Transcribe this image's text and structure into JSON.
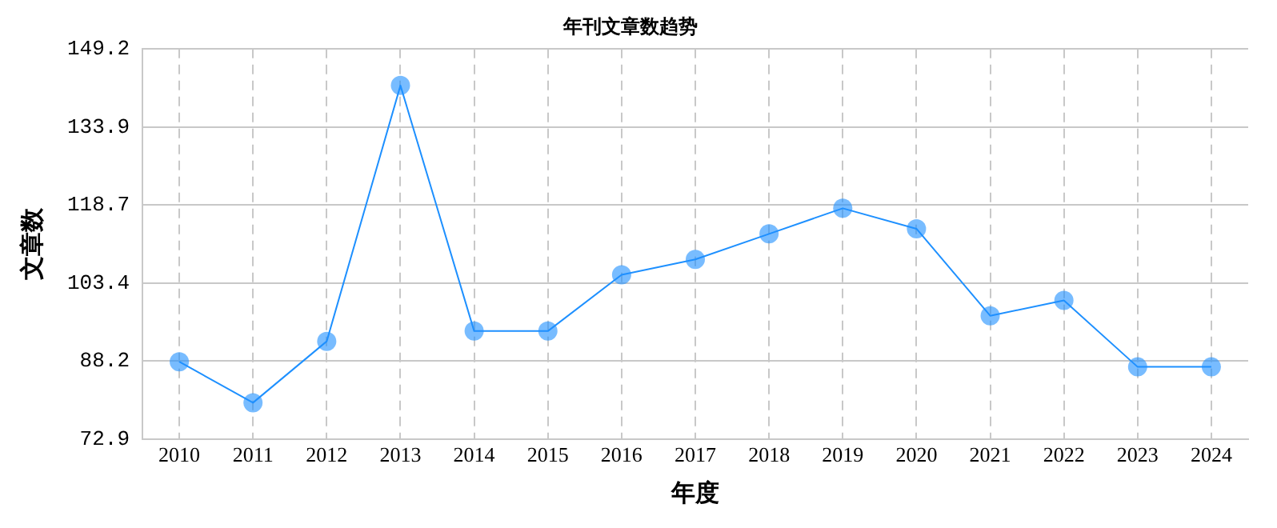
{
  "chart_data": {
    "type": "line",
    "title": "年刊文章数趋势",
    "xlabel": "年度",
    "ylabel": "文章数",
    "categories": [
      "2010",
      "2011",
      "2012",
      "2013",
      "2014",
      "2015",
      "2016",
      "2017",
      "2018",
      "2019",
      "2020",
      "2021",
      "2022",
      "2023",
      "2024"
    ],
    "series": [
      {
        "color": "#1e90ff",
        "values": [
          88,
          80,
          92,
          142,
          94,
          94,
          105,
          108,
          113,
          118,
          114,
          97,
          100,
          87,
          87
        ]
      }
    ],
    "ylim": [
      72.9,
      149.2
    ],
    "yticks": [
      72.9,
      88.2,
      103.4,
      118.7,
      133.9,
      149.2
    ],
    "grid": true,
    "marker": "circle",
    "line_style": "solid"
  }
}
